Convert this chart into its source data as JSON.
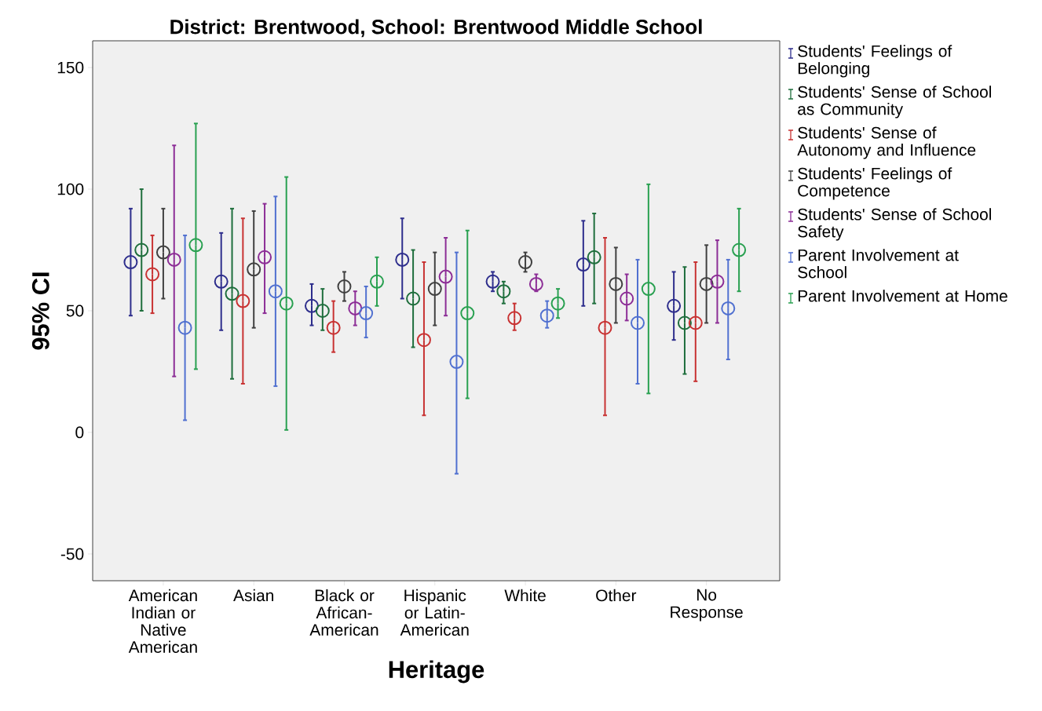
{
  "chart_data": {
    "type": "scatter",
    "title": "District: Brentwood, School: Brentwood Middle School",
    "xlabel": "Heritage",
    "ylabel": "95% CI",
    "categories": [
      "American Indian or Native American",
      "Asian",
      "Black or African-American",
      "Hispanic or Latin-American",
      "White",
      "Other",
      "No Response"
    ],
    "ylim": [
      -61,
      161
    ],
    "yticks": [
      -50,
      0,
      50,
      100,
      150
    ],
    "grid": false,
    "legend": "right",
    "marker": "circle",
    "series": [
      {
        "name": "Students' Feelings of Belonging",
        "color": "#2d2d8c",
        "values": [
          70,
          62,
          52,
          71,
          62,
          69,
          52
        ],
        "errors": [
          [
            48,
            92
          ],
          [
            42,
            82
          ],
          [
            44,
            61
          ],
          [
            55,
            88
          ],
          [
            58,
            66
          ],
          [
            52,
            87
          ],
          [
            38,
            66
          ]
        ]
      },
      {
        "name": "Students' Sense of School as Community",
        "color": "#1e6e3c",
        "values": [
          75,
          57,
          50,
          55,
          58,
          72,
          45
        ],
        "errors": [
          [
            50,
            100
          ],
          [
            22,
            92
          ],
          [
            42,
            59
          ],
          [
            35,
            75
          ],
          [
            53,
            62
          ],
          [
            53,
            90
          ],
          [
            24,
            68
          ]
        ]
      },
      {
        "name": "Students' Sense of Autonomy and Influence",
        "color": "#c83232",
        "values": [
          65,
          54,
          43,
          38,
          47,
          43,
          45
        ],
        "errors": [
          [
            49,
            81
          ],
          [
            20,
            88
          ],
          [
            33,
            54
          ],
          [
            7,
            70
          ],
          [
            42,
            53
          ],
          [
            7,
            80
          ],
          [
            21,
            70
          ]
        ]
      },
      {
        "name": "Students' Feelings of Competence",
        "color": "#404040",
        "values": [
          74,
          67,
          60,
          59,
          70,
          61,
          61
        ],
        "errors": [
          [
            55,
            92
          ],
          [
            43,
            91
          ],
          [
            54,
            66
          ],
          [
            44,
            74
          ],
          [
            66,
            74
          ],
          [
            45,
            76
          ],
          [
            45,
            77
          ]
        ]
      },
      {
        "name": "Students' Sense of School Safety",
        "color": "#8c2d96",
        "values": [
          71,
          72,
          51,
          64,
          61,
          55,
          62
        ],
        "errors": [
          [
            23,
            118
          ],
          [
            49,
            94
          ],
          [
            44,
            58
          ],
          [
            48,
            80
          ],
          [
            58,
            65
          ],
          [
            46,
            65
          ],
          [
            45,
            79
          ]
        ]
      },
      {
        "name": "Parent Involvement at School",
        "color": "#5070d0",
        "values": [
          43,
          58,
          49,
          29,
          48,
          45,
          51
        ],
        "errors": [
          [
            5,
            81
          ],
          [
            19,
            97
          ],
          [
            39,
            60
          ],
          [
            -17,
            74
          ],
          [
            43,
            54
          ],
          [
            20,
            71
          ],
          [
            30,
            71
          ]
        ]
      },
      {
        "name": "Parent Involvement at Home",
        "color": "#28a050",
        "values": [
          77,
          53,
          62,
          49,
          53,
          59,
          75
        ],
        "errors": [
          [
            26,
            127
          ],
          [
            1,
            105
          ],
          [
            52,
            72
          ],
          [
            14,
            83
          ],
          [
            47,
            59
          ],
          [
            16,
            102
          ],
          [
            58,
            92
          ]
        ]
      }
    ]
  }
}
